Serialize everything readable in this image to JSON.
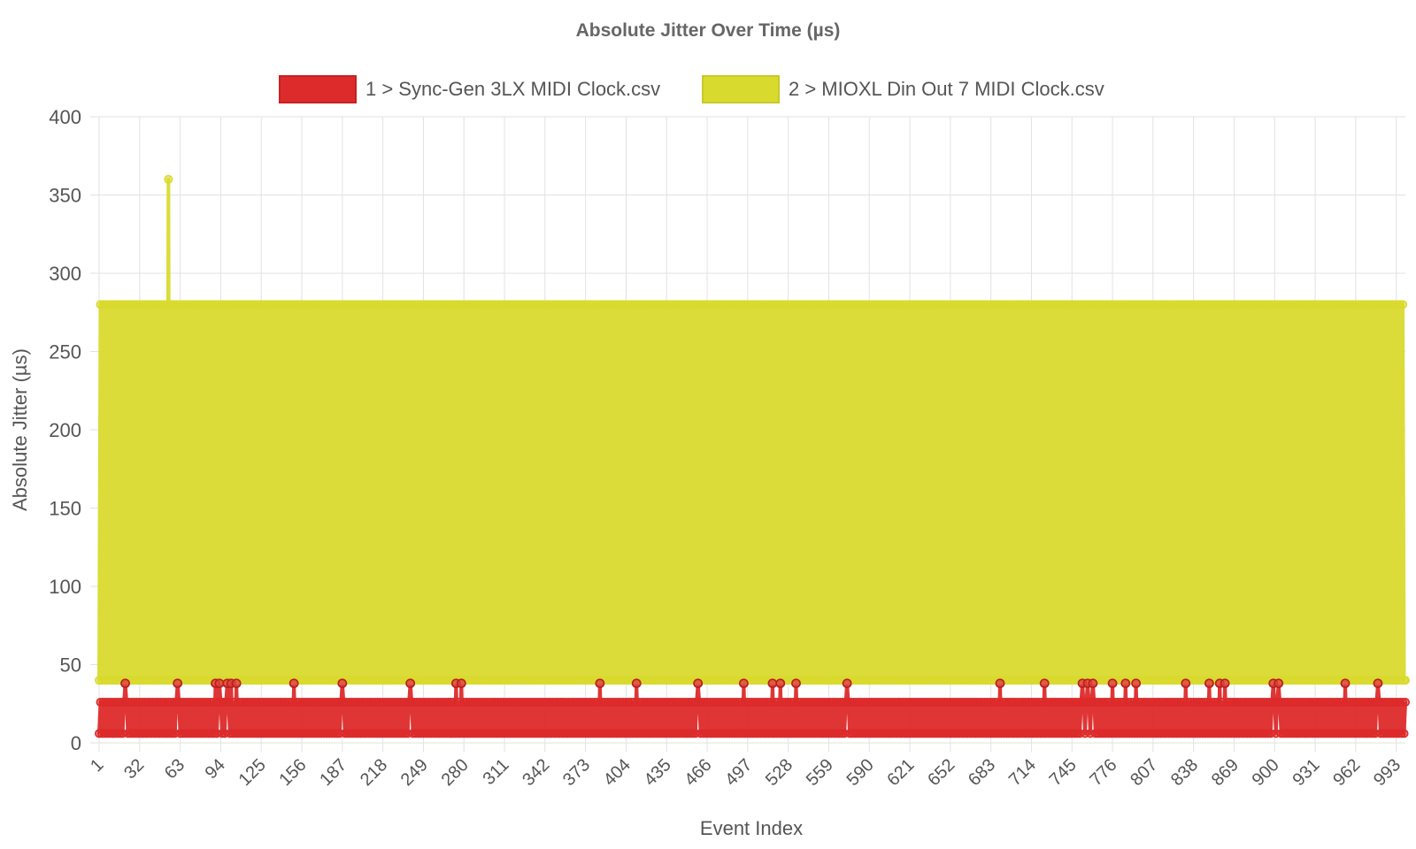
{
  "chart_data": {
    "type": "line",
    "title": "Absolute Jitter Over Time (µs)",
    "xlabel": "Event Index",
    "ylabel": "Absolute Jitter (µs)",
    "ylim": [
      0,
      400
    ],
    "y_ticks": [
      0,
      50,
      100,
      150,
      200,
      250,
      300,
      350,
      400
    ],
    "x_range": [
      1,
      1000
    ],
    "x_ticks": [
      1,
      32,
      63,
      94,
      125,
      156,
      187,
      218,
      249,
      280,
      311,
      342,
      373,
      404,
      435,
      466,
      497,
      528,
      559,
      590,
      621,
      652,
      683,
      714,
      745,
      776,
      807,
      838,
      869,
      900,
      931,
      962,
      993
    ],
    "grid": true,
    "legend_position": "top",
    "series": [
      {
        "name": "1 > Sync-Gen 3LX MIDI Clock.csv",
        "color": "#dd2a2a",
        "pattern": "alternating",
        "low": 6,
        "high": 26,
        "spike": 38,
        "spike_events": [
          21,
          61,
          90,
          93,
          99,
          102,
          106,
          150,
          187,
          239,
          274,
          278,
          384,
          412,
          459,
          494,
          516,
          522,
          534,
          573,
          690,
          724,
          753,
          757,
          761,
          776,
          786,
          794,
          832,
          850,
          858,
          862,
          899,
          903,
          954,
          979
        ]
      },
      {
        "name": "2 > MIOXL Din Out 7 MIDI Clock.csv",
        "color": "#d9da2e",
        "pattern": "alternating",
        "low": 40,
        "high": 280,
        "peak_events": [
          {
            "x": 54,
            "y": 360
          }
        ],
        "last_value": 40
      }
    ]
  }
}
